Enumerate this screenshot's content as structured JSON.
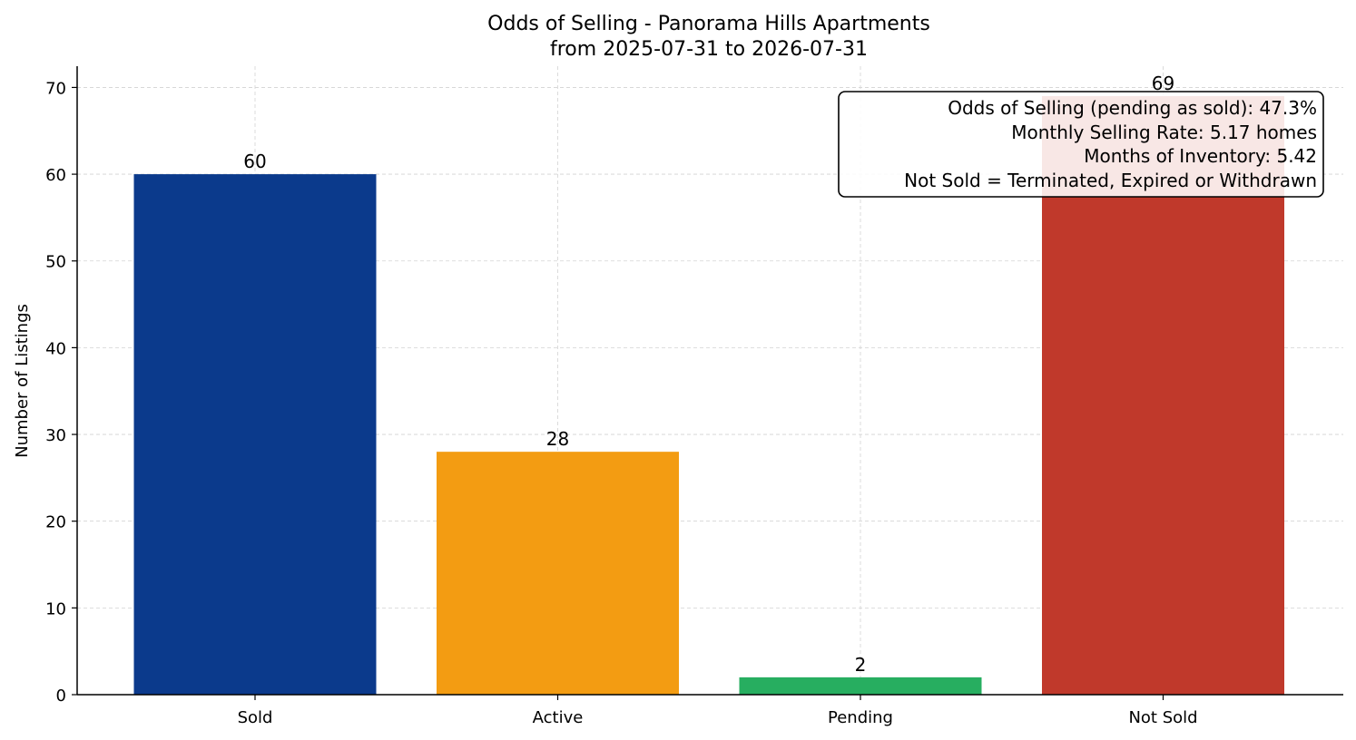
{
  "chart_data": {
    "type": "bar",
    "title": "Odds of Selling - Panorama Hills Apartments",
    "subtitle": "from 2025-07-31 to 2026-07-31",
    "xlabel": "",
    "ylabel": "Number of Listings",
    "categories": [
      "Sold",
      "Active",
      "Pending",
      "Not Sold"
    ],
    "values": [
      60,
      28,
      2,
      69
    ],
    "data_labels": [
      "60",
      "28",
      "2",
      "69"
    ],
    "colors": [
      "#0b3a8c",
      "#f39c12",
      "#27ae60",
      "#c0392b"
    ],
    "ylim": [
      0,
      72.45
    ],
    "yticks": [
      0,
      10,
      20,
      30,
      40,
      50,
      60,
      70
    ],
    "grid": true,
    "annotation": {
      "lines": [
        "Odds of Selling (pending as sold): 47.3%",
        "Monthly Selling Rate: 5.17 homes",
        "Months of Inventory: 5.42",
        "Not Sold = Terminated, Expired or Withdrawn"
      ],
      "placement": "top-right"
    }
  }
}
